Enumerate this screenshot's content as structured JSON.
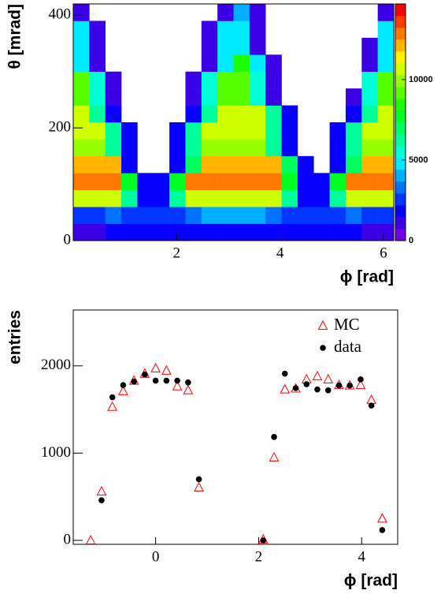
{
  "chart_data": [
    {
      "type": "heatmap",
      "x_label": "ϕ [rad]",
      "y_label": "θ [mrad]",
      "xbins": [
        0,
        0.31,
        0.62,
        0.93,
        1.24,
        1.55,
        1.86,
        2.17,
        2.48,
        2.79,
        3.1,
        3.41,
        3.72,
        4.03,
        4.34,
        4.65,
        4.96,
        5.27,
        5.58,
        5.89,
        6.2
      ],
      "ybins": [
        0,
        30,
        60,
        90,
        120,
        150,
        180,
        210,
        240,
        270,
        300,
        330,
        360,
        390,
        420
      ],
      "z": [
        [
          800,
          1200,
          1500,
          1500,
          1500,
          1500,
          1500,
          1500,
          1800,
          2000,
          2000,
          1800,
          1500,
          1500,
          1500,
          1500,
          1500,
          1500,
          1200,
          800
        ],
        [
          2500,
          2800,
          3000,
          2800,
          2500,
          2500,
          2800,
          3500,
          4000,
          4200,
          4200,
          4000,
          3500,
          2800,
          2500,
          2500,
          2800,
          3000,
          2800,
          2500
        ],
        [
          11000,
          11000,
          11000,
          6600,
          1650,
          1650,
          6600,
          11000,
          11000,
          11000,
          11000,
          11000,
          11000,
          6600,
          1650,
          1650,
          6600,
          11000,
          11000,
          11000
        ],
        [
          13000,
          13000,
          13000,
          7800,
          1950,
          1950,
          7800,
          13000,
          13000,
          13000,
          13000,
          13000,
          13000,
          7800,
          1950,
          1950,
          7800,
          13000,
          13000,
          13000
        ],
        [
          12000,
          12000,
          12000,
          1800,
          0,
          0,
          1800,
          7200,
          12000,
          12000,
          12000,
          12000,
          12000,
          7200,
          1800,
          0,
          1800,
          7200,
          12000,
          12000
        ],
        [
          10000,
          10000,
          6000,
          1500,
          0,
          0,
          1500,
          6000,
          10000,
          10000,
          10000,
          10000,
          6000,
          1500,
          0,
          0,
          1500,
          6000,
          10000,
          10000
        ],
        [
          11000,
          11000,
          6600,
          1650,
          0,
          0,
          1650,
          6600,
          11000,
          11000,
          11000,
          11000,
          6600,
          1650,
          0,
          0,
          1650,
          6600,
          11000,
          11000
        ],
        [
          10500,
          6300,
          1575,
          0,
          0,
          0,
          0,
          1575,
          6300,
          10500,
          10500,
          10500,
          6300,
          1575,
          0,
          0,
          0,
          1575,
          6300,
          10500
        ],
        [
          9000,
          5400,
          1350,
          0,
          0,
          0,
          0,
          1350,
          5400,
          9000,
          9000,
          5400,
          1350,
          0,
          0,
          0,
          0,
          1350,
          5400,
          9000
        ],
        [
          9000,
          5400,
          1350,
          0,
          0,
          0,
          0,
          1350,
          5400,
          9000,
          9000,
          5400,
          1350,
          0,
          0,
          0,
          0,
          0,
          5400,
          9000
        ],
        [
          5100,
          1275,
          0,
          0,
          0,
          0,
          0,
          0,
          1275,
          5100,
          8500,
          5100,
          1275,
          0,
          0,
          0,
          0,
          0,
          1275,
          5100
        ],
        [
          4800,
          1200,
          0,
          0,
          0,
          0,
          0,
          0,
          1200,
          4800,
          4800,
          1200,
          0,
          0,
          0,
          0,
          0,
          0,
          1200,
          4800
        ],
        [
          4800,
          1200,
          0,
          0,
          0,
          0,
          0,
          0,
          1200,
          4800,
          4800,
          1200,
          0,
          0,
          0,
          0,
          0,
          0,
          0,
          4800
        ],
        [
          1050,
          0,
          0,
          0,
          0,
          0,
          0,
          0,
          0,
          1050,
          4200,
          1050,
          0,
          0,
          0,
          0,
          0,
          0,
          0,
          1050
        ]
      ],
      "xlim": [
        0,
        6.2
      ],
      "xticks": [
        2,
        4,
        6
      ],
      "ylim": [
        0,
        420
      ],
      "yticks": [
        0,
        200,
        400
      ],
      "zlim": [
        0,
        14700
      ],
      "zticks": [
        0,
        5000,
        10000
      ]
    },
    {
      "type": "scatter",
      "x_label": "ϕ [rad]",
      "y_label": "entries",
      "x": [
        -1.26,
        -1.05,
        -0.84,
        -0.63,
        -0.42,
        -0.21,
        0,
        0.21,
        0.42,
        0.63,
        0.84,
        2.09,
        2.3,
        2.51,
        2.72,
        2.93,
        3.14,
        3.35,
        3.56,
        3.77,
        3.98,
        4.19,
        4.4
      ],
      "series": [
        {
          "name": "MC",
          "color": "#ff0000",
          "marker": "triangle-open",
          "values": [
            0,
            560,
            1530,
            1710,
            1830,
            1910,
            1970,
            1945,
            1765,
            1720,
            606,
            10,
            950,
            1730,
            1740,
            1845,
            1880,
            1845,
            1780,
            1775,
            1780,
            1610,
            250
          ]
        },
        {
          "name": "data",
          "color": "#000000",
          "marker": "circle",
          "values": [
            null,
            460,
            1640,
            1780,
            1820,
            1900,
            1830,
            1830,
            1830,
            1810,
            700,
            0,
            1185,
            1910,
            1745,
            1790,
            1730,
            1720,
            1775,
            1775,
            1845,
            1545,
            118
          ]
        }
      ],
      "xlim": [
        -1.6,
        4.7
      ],
      "xticks": [
        0,
        2,
        4
      ],
      "ylim": [
        -45,
        2640
      ],
      "yticks": [
        0,
        1000,
        2000
      ],
      "legend": "upper right"
    }
  ]
}
